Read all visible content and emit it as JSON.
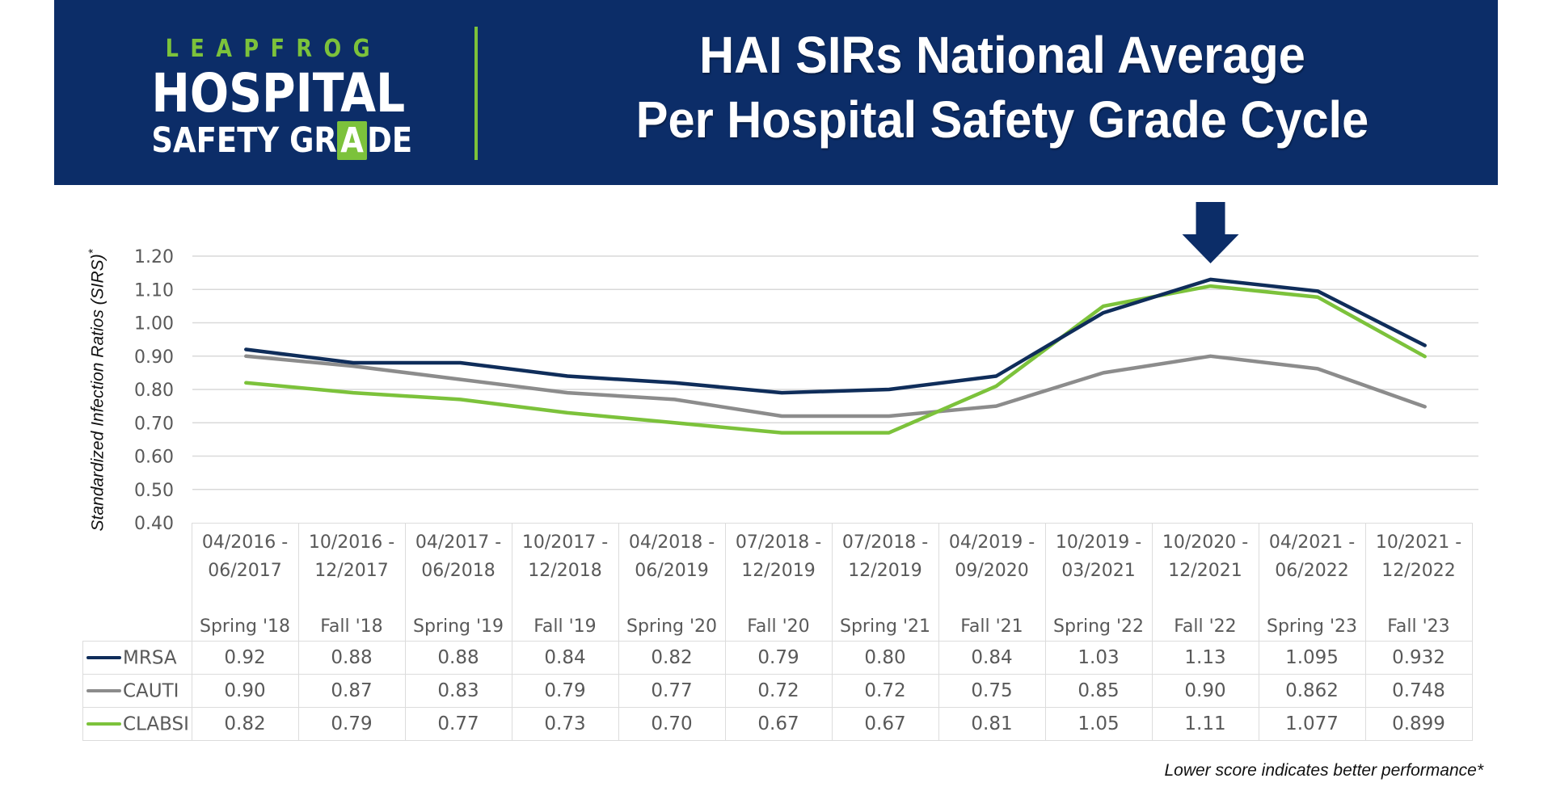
{
  "header": {
    "logo": {
      "line1": "LEAPFROG",
      "line2": "HOSPITAL",
      "line3_before": "SAFETY GR",
      "line3_highlight": "A",
      "line3_after": "DE"
    },
    "title_line1": "HAI SIRs National Average",
    "title_line2": "Per Hospital Safety Grade Cycle"
  },
  "colors": {
    "banner": "#0c2d68",
    "accent_green": "#7cc23b",
    "mrsa": "#0f2d5a",
    "cauti": "#8c8c8c",
    "clabsi": "#7cc23b",
    "arrow": "#0c2d68",
    "grid": "#d9d9d9"
  },
  "footnote": "Lower score indicates better performance*",
  "chart_data": {
    "type": "line",
    "title": "HAI SIRs National Average Per Hospital Safety Grade Cycle",
    "ylabel": "Standardized  Infection Ratios (SIRS)",
    "ylabel_suffix": "*",
    "xlabel": "",
    "ylim": [
      0.4,
      1.2
    ],
    "yticks": [
      "1.20",
      "1.10",
      "1.00",
      "0.90",
      "0.80",
      "0.70",
      "0.60",
      "0.50",
      "0.40"
    ],
    "ytick_values": [
      1.2,
      1.1,
      1.0,
      0.9,
      0.8,
      0.7,
      0.6,
      0.5,
      0.4
    ],
    "grid": true,
    "legend": "bottom-left (data table)",
    "annotation": {
      "type": "down-arrow",
      "category": "Fall '22"
    },
    "categories": [
      "Spring '18",
      "Fall '18",
      "Spring '19",
      "Fall '19",
      "Spring '20",
      "Fall '20",
      "Spring '21",
      "Fall '21",
      "Spring '22",
      "Fall '22",
      "Spring '23",
      "Fall '23"
    ],
    "date_ranges": [
      [
        "04/2016 -",
        "06/2017"
      ],
      [
        "10/2016 -",
        "12/2017"
      ],
      [
        "04/2017 -",
        "06/2018"
      ],
      [
        "10/2017 -",
        "12/2018"
      ],
      [
        "04/2018 -",
        "06/2019"
      ],
      [
        "07/2018 -",
        "12/2019"
      ],
      [
        "07/2018 -",
        "12/2019"
      ],
      [
        "04/2019 -",
        "09/2020"
      ],
      [
        "10/2019 -",
        "03/2021"
      ],
      [
        "10/2020 -",
        "12/2021"
      ],
      [
        "04/2021 -",
        "06/2022"
      ],
      [
        "10/2021 -",
        "12/2022"
      ]
    ],
    "series": [
      {
        "name": "MRSA",
        "color": "#0f2d5a",
        "values": [
          0.92,
          0.88,
          0.88,
          0.84,
          0.82,
          0.79,
          0.8,
          0.84,
          1.03,
          1.13,
          1.095,
          0.932
        ],
        "labels": [
          "0.92",
          "0.88",
          "0.88",
          "0.84",
          "0.82",
          "0.79",
          "0.80",
          "0.84",
          "1.03",
          "1.13",
          "1.095",
          "0.932"
        ]
      },
      {
        "name": "CAUTI",
        "color": "#8c8c8c",
        "values": [
          0.9,
          0.87,
          0.83,
          0.79,
          0.77,
          0.72,
          0.72,
          0.75,
          0.85,
          0.9,
          0.862,
          0.748
        ],
        "labels": [
          "0.90",
          "0.87",
          "0.83",
          "0.79",
          "0.77",
          "0.72",
          "0.72",
          "0.75",
          "0.85",
          "0.90",
          "0.862",
          "0.748"
        ]
      },
      {
        "name": "CLABSI",
        "color": "#7cc23b",
        "values": [
          0.82,
          0.79,
          0.77,
          0.73,
          0.7,
          0.67,
          0.67,
          0.81,
          1.05,
          1.11,
          1.077,
          0.899
        ],
        "labels": [
          "0.82",
          "0.79",
          "0.77",
          "0.73",
          "0.70",
          "0.67",
          "0.67",
          "0.81",
          "1.05",
          "1.11",
          "1.077",
          "0.899"
        ]
      }
    ]
  }
}
